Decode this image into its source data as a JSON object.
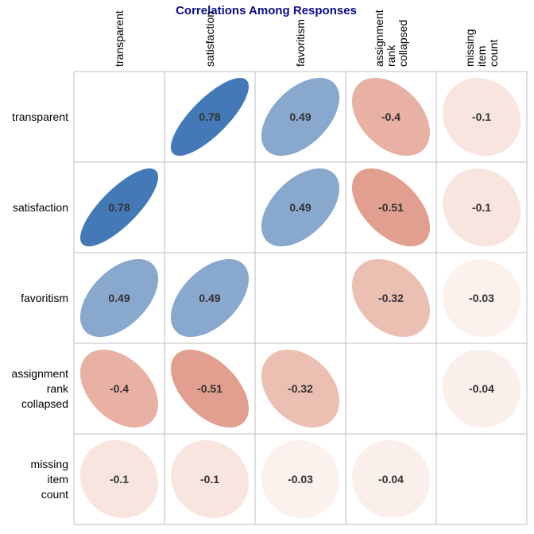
{
  "chart_data": {
    "type": "heatmap",
    "subtype": "correlation-ellipse-matrix",
    "title": "Correlations Among Responses",
    "variables": [
      {
        "key": "transparent",
        "lines": [
          "transparent"
        ]
      },
      {
        "key": "satisfaction",
        "lines": [
          "satisfaction"
        ]
      },
      {
        "key": "favoritism",
        "lines": [
          "favoritism"
        ]
      },
      {
        "key": "assignment_rank_collapsed",
        "lines": [
          "assignment",
          "rank",
          "collapsed"
        ]
      },
      {
        "key": "missing_item_count",
        "lines": [
          "missing",
          "item",
          "count"
        ]
      }
    ],
    "matrix": [
      [
        null,
        0.78,
        0.49,
        -0.4,
        -0.1
      ],
      [
        0.78,
        null,
        0.49,
        -0.51,
        -0.1
      ],
      [
        0.49,
        0.49,
        null,
        -0.32,
        -0.03
      ],
      [
        -0.4,
        -0.51,
        -0.32,
        null,
        -0.04
      ],
      [
        -0.1,
        -0.1,
        -0.03,
        -0.04,
        null
      ]
    ],
    "value_labels": [
      [
        null,
        "0.78",
        "0.49",
        "-0.4",
        "-0.1"
      ],
      [
        "0.78",
        null,
        "0.49",
        "-0.51",
        "-0.1"
      ],
      [
        "0.49",
        "0.49",
        null,
        "-0.32",
        "-0.03"
      ],
      [
        "-0.4",
        "-0.51",
        "-0.32",
        null,
        "-0.04"
      ],
      [
        "-0.1",
        "-0.1",
        "-0.03",
        "-0.04",
        null
      ]
    ],
    "diagonal": "blank",
    "color_scale": {
      "negative_strong": "#c8492c",
      "neutral": "#fdf6f3",
      "positive_strong": "#0f56a6",
      "range": [
        -1,
        1
      ]
    },
    "grid": true,
    "colors": {
      "title": "#0b0b8a",
      "value_text": "#333333",
      "grid": "#bfbfbf"
    }
  }
}
